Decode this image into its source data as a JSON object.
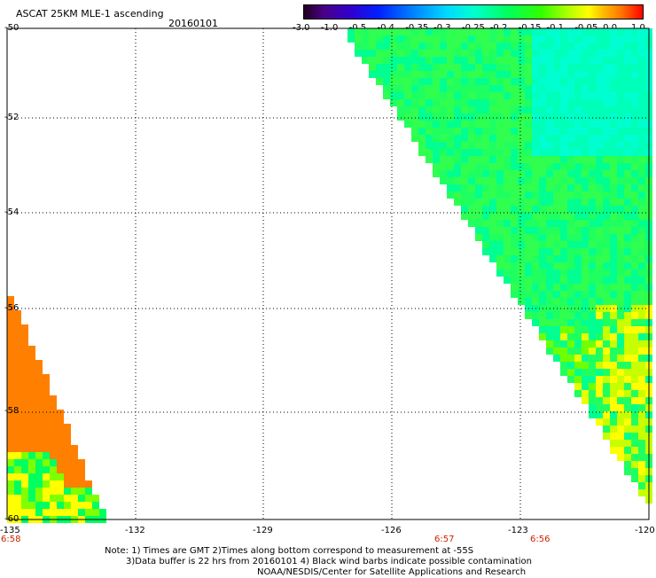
{
  "header": {
    "title": "ASCAT 25KM MLE-1 ascending",
    "date": "20160101"
  },
  "colorbar": {
    "labels": [
      "-3.0",
      "-1.0",
      "-0.5",
      "-0.4",
      "-0.35",
      "-0.3",
      "-0.25",
      "-0.2",
      "-0.15",
      "-0.1",
      "-0.05",
      "0.0",
      "1.0"
    ],
    "colors": [
      "#2a0030",
      "#5a00a0",
      "#3a00e0",
      "#0040ff",
      "#0090ff",
      "#00e0ff",
      "#00ffb0",
      "#00ff30",
      "#50ff00",
      "#c0ff00",
      "#ffff00",
      "#ff8000",
      "#ff0000"
    ]
  },
  "map": {
    "lat_labels": [
      "-50",
      "-52",
      "-54",
      "-56",
      "-58",
      "-60"
    ],
    "lon_labels": [
      "-135",
      "-132",
      "-129",
      "-126",
      "-123",
      "-120"
    ],
    "lon_range": [
      -135,
      -120
    ],
    "lat_range": [
      -60,
      -50
    ],
    "time_labels": [
      {
        "text": "6:58",
        "lon": -135
      },
      {
        "text": "6:57",
        "lon": -124.8
      },
      {
        "text": "6:56",
        "lon": -122.8
      }
    ]
  },
  "notes": {
    "line1": "Note: 1) Times are GMT 2)Times along bottom correspond to measurement at -55S",
    "line2": "3)Data buffer is 22 hrs from 20160101 4) Black wind barbs indicate possible contamination",
    "line3": "NOAA/NESDIS/Center for Satellite Applications and Research"
  }
}
